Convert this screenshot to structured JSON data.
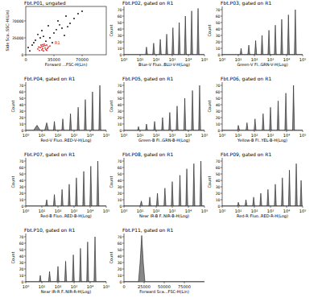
{
  "chart_data": [
    {
      "type": "scatter",
      "title": "Fbt.P01, ungated",
      "x_label": "Forward ...FSC-H(Lin)",
      "y_label": "Side Sca..SSC-H(Lin)",
      "annotation": "R1",
      "xlim": [
        0,
        100000
      ],
      "ylim": [
        0,
        100000
      ],
      "xticks": [
        0,
        35000,
        70000
      ],
      "yticks": [
        0,
        35000,
        70000
      ],
      "series": [
        {
          "color": "#000000",
          "x": [
            12000,
            15000,
            20000,
            28000,
            35000,
            40000,
            45000,
            50000,
            55000,
            60000,
            65000,
            30000,
            25000,
            38000,
            48000,
            8000,
            5000,
            3000,
            70000,
            33000,
            22000,
            42000,
            18000,
            10000,
            52000
          ],
          "values": [
            30000,
            42000,
            50000,
            60000,
            45000,
            70000,
            55000,
            80000,
            65000,
            75000,
            85000,
            35000,
            28000,
            52000,
            40000,
            20000,
            8000,
            15000,
            90000,
            25000,
            38000,
            62000,
            35000,
            25000,
            58000
          ]
        },
        {
          "color": "#e02020",
          "x": [
            15000,
            18000,
            20000,
            22000,
            24000,
            26000,
            28000,
            17000,
            19000,
            21000,
            23000,
            25000,
            27000,
            20000,
            22000,
            24000,
            16000,
            30000,
            26000,
            21000
          ],
          "values": [
            12000,
            15000,
            10000,
            18000,
            14000,
            20000,
            16000,
            9000,
            20000,
            13000,
            22000,
            11000,
            13000,
            17000,
            8000,
            19000,
            16000,
            18000,
            9000,
            21000
          ]
        }
      ]
    },
    {
      "type": "area",
      "title": "Fbt.P02, gated on R1",
      "x_label": "Blue-V Fluo..BLU-V-H(Log)",
      "y_label": "Count",
      "log": "x",
      "color": "#888888",
      "xlim": [
        1,
        100000
      ],
      "ylim": [
        0,
        75
      ],
      "xticks": [
        {
          "value": 1,
          "label": "10⁰"
        },
        {
          "value": 10,
          "label": "10¹"
        },
        {
          "value": 100,
          "label": "10²"
        },
        {
          "value": 1000,
          "label": "10³"
        },
        {
          "value": 10000,
          "label": "10⁴"
        },
        {
          "value": 100000,
          "label": "10⁵"
        }
      ],
      "yticks": [
        0,
        10,
        20,
        30,
        40,
        50,
        60,
        70
      ],
      "x": [
        1,
        22,
        25,
        29,
        61,
        70,
        81,
        157,
        180,
        207,
        392,
        450,
        518,
        957,
        1100,
        1265,
        2349,
        2700,
        3105,
        5655,
        6500,
        7475,
        13920,
        16000,
        18400,
        34800,
        40000,
        46000,
        100000
      ],
      "values": [
        0,
        0,
        12,
        0,
        0,
        18,
        0,
        0,
        24,
        0,
        0,
        32,
        0,
        0,
        42,
        0,
        0,
        50,
        0,
        0,
        60,
        0,
        0,
        68,
        0,
        0,
        72,
        0,
        0
      ]
    },
    {
      "type": "area",
      "title": "Fbt.P03, gated on R1",
      "x_label": "Green-V Fl..GRN-V-H(Log)",
      "y_label": "Count",
      "log": "x",
      "color": "#888888",
      "xlim": [
        1,
        100000
      ],
      "ylim": [
        0,
        75
      ],
      "xticks": [
        {
          "value": 1,
          "label": "10⁰"
        },
        {
          "value": 10,
          "label": "10¹"
        },
        {
          "value": 100,
          "label": "10²"
        },
        {
          "value": 1000,
          "label": "10³"
        },
        {
          "value": 10000,
          "label": "10⁴"
        },
        {
          "value": 100000,
          "label": "10⁵"
        }
      ],
      "yticks": [
        0,
        10,
        20,
        30,
        40,
        50,
        60,
        70
      ],
      "x": [
        1,
        13,
        15,
        17,
        39,
        45,
        52,
        104,
        120,
        138,
        261,
        300,
        345,
        696,
        800,
        920,
        1740,
        2000,
        2300,
        4350,
        5000,
        5750,
        11310,
        13000,
        14950,
        30450,
        35000,
        40250,
        100000
      ],
      "values": [
        0,
        0,
        10,
        0,
        0,
        15,
        0,
        0,
        22,
        0,
        0,
        30,
        0,
        0,
        38,
        0,
        0,
        46,
        0,
        0,
        55,
        0,
        0,
        62,
        0,
        0,
        70,
        0,
        0
      ]
    },
    {
      "type": "area",
      "title": "Fbt.P04, gated on R1",
      "x_label": "Red-V Fluo..RED-V-H(Log)",
      "y_label": "Count",
      "log": "x",
      "color": "#888888",
      "xlim": [
        1,
        100000
      ],
      "ylim": [
        0,
        75
      ],
      "xticks": [
        {
          "value": 1,
          "label": "10⁰"
        },
        {
          "value": 10,
          "label": "10¹"
        },
        {
          "value": 100,
          "label": "10²"
        },
        {
          "value": 1000,
          "label": "10³"
        },
        {
          "value": 10000,
          "label": "10⁴"
        },
        {
          "value": 100000,
          "label": "10⁵"
        }
      ],
      "yticks": [
        0,
        10,
        20,
        30,
        40,
        50,
        60,
        70
      ],
      "x": [
        1,
        3,
        5,
        8,
        15,
        20,
        26,
        52,
        60,
        69,
        174,
        200,
        230,
        522,
        600,
        690,
        1566,
        1800,
        2070,
        4350,
        5000,
        5750,
        12180,
        14000,
        16100,
        34800,
        40000,
        46000,
        100000
      ],
      "values": [
        0,
        0,
        8,
        0,
        0,
        12,
        0,
        0,
        14,
        0,
        0,
        18,
        0,
        0,
        26,
        0,
        0,
        36,
        0,
        0,
        48,
        0,
        0,
        60,
        0,
        0,
        70,
        0,
        0
      ]
    },
    {
      "type": "area",
      "title": "Fbt.P05, gated on R1",
      "x_label": "Green-B Fl..GRN-B-H(Log)",
      "y_label": "Count",
      "log": "x",
      "color": "#888888",
      "xlim": [
        1,
        100000
      ],
      "ylim": [
        0,
        75
      ],
      "xticks": [
        {
          "value": 1,
          "label": "10⁰"
        },
        {
          "value": 10,
          "label": "10¹"
        },
        {
          "value": 100,
          "label": "10²"
        },
        {
          "value": 1000,
          "label": "10³"
        },
        {
          "value": 10000,
          "label": "10⁴"
        },
        {
          "value": 100000,
          "label": "10⁵"
        }
      ],
      "yticks": [
        0,
        10,
        20,
        30,
        40,
        50,
        60,
        70
      ],
      "x": [
        1,
        7,
        8,
        9,
        22,
        25,
        29,
        70,
        80,
        92,
        218,
        250,
        288,
        609,
        700,
        805,
        1740,
        2000,
        2300,
        5220,
        6000,
        6900,
        15660,
        18000,
        20700,
        43500,
        50000,
        57500,
        100000
      ],
      "values": [
        0,
        0,
        6,
        0,
        0,
        10,
        0,
        0,
        14,
        0,
        0,
        20,
        0,
        0,
        28,
        0,
        0,
        38,
        0,
        0,
        50,
        0,
        0,
        62,
        0,
        0,
        70,
        0,
        0
      ]
    },
    {
      "type": "area",
      "title": "Fbt.P06, gated on R1",
      "x_label": "Yellow-B Fl..YEL-B-H(Log)",
      "y_label": "Count",
      "log": "x",
      "color": "#888888",
      "xlim": [
        1,
        100000
      ],
      "ylim": [
        0,
        75
      ],
      "xticks": [
        {
          "value": 1,
          "label": "10⁰"
        },
        {
          "value": 10,
          "label": "10¹"
        },
        {
          "value": 100,
          "label": "10²"
        },
        {
          "value": 1000,
          "label": "10³"
        },
        {
          "value": 10000,
          "label": "10⁴"
        },
        {
          "value": 100000,
          "label": "10⁵"
        }
      ],
      "yticks": [
        0,
        10,
        20,
        30,
        40,
        50,
        60,
        70
      ],
      "x": [
        1,
        9,
        10,
        12,
        30,
        35,
        40,
        96,
        110,
        127,
        305,
        350,
        403,
        870,
        1000,
        1150,
        2610,
        3000,
        3450,
        7830,
        9000,
        10350,
        23490,
        27000,
        31050,
        100000
      ],
      "values": [
        0,
        0,
        8,
        0,
        0,
        12,
        0,
        0,
        18,
        0,
        0,
        26,
        0,
        0,
        36,
        0,
        0,
        46,
        0,
        0,
        58,
        0,
        0,
        70,
        0,
        0
      ]
    },
    {
      "type": "area",
      "title": "Fbt.P07, gated on R1",
      "x_label": "Red-B Fluo..RED-B-H(Log)",
      "y_label": "Count",
      "log": "x",
      "color": "#888888",
      "xlim": [
        1,
        100000
      ],
      "ylim": [
        0,
        75
      ],
      "xticks": [
        {
          "value": 1,
          "label": "10⁰"
        },
        {
          "value": 10,
          "label": "10¹"
        },
        {
          "value": 100,
          "label": "10²"
        },
        {
          "value": 1000,
          "label": "10³"
        },
        {
          "value": 10000,
          "label": "10⁴"
        },
        {
          "value": 100000,
          "label": "10⁵"
        }
      ],
      "yticks": [
        0,
        10,
        20,
        30,
        40,
        50,
        60,
        70
      ],
      "x": [
        1,
        17,
        20,
        23,
        52,
        60,
        69,
        157,
        180,
        207,
        435,
        500,
        575,
        1218,
        1400,
        1610,
        3480,
        4000,
        4600,
        9570,
        11000,
        12650,
        26100,
        30000,
        34500,
        100000
      ],
      "values": [
        0,
        0,
        10,
        0,
        0,
        18,
        0,
        0,
        26,
        0,
        0,
        34,
        0,
        0,
        44,
        0,
        0,
        54,
        0,
        0,
        62,
        0,
        0,
        70,
        0,
        0
      ]
    },
    {
      "type": "area",
      "title": "Fbt.P08, gated on R1",
      "x_label": "Near IR-B F..NIR-B-H(Log)",
      "y_label": "Count",
      "log": "x",
      "color": "#888888",
      "xlim": [
        1,
        100000
      ],
      "ylim": [
        0,
        75
      ],
      "xticks": [
        {
          "value": 1,
          "label": "10⁰"
        },
        {
          "value": 10,
          "label": "10¹"
        },
        {
          "value": 100,
          "label": "10²"
        },
        {
          "value": 1000,
          "label": "10³"
        },
        {
          "value": 10000,
          "label": "10⁴"
        },
        {
          "value": 100000,
          "label": "10⁵"
        }
      ],
      "yticks": [
        0,
        10,
        20,
        30,
        40,
        50,
        60,
        70
      ],
      "x": [
        1,
        10,
        12,
        14,
        35,
        40,
        46,
        104,
        120,
        138,
        305,
        350,
        403,
        870,
        1000,
        1150,
        2610,
        3000,
        3450,
        6960,
        8000,
        9200,
        19140,
        22000,
        25300,
        52200,
        60000,
        69000,
        100000
      ],
      "values": [
        0,
        0,
        8,
        0,
        0,
        14,
        0,
        0,
        20,
        0,
        0,
        28,
        0,
        0,
        38,
        0,
        0,
        48,
        0,
        0,
        58,
        0,
        0,
        66,
        0,
        0,
        70,
        0,
        0
      ]
    },
    {
      "type": "area",
      "title": "Fbt.P09, gated on R1",
      "x_label": "Red-R Fluo..RED-R-H(Log)",
      "y_label": "Count",
      "log": "x",
      "color": "#888888",
      "xlim": [
        1,
        100000
      ],
      "ylim": [
        0,
        75
      ],
      "xticks": [
        {
          "value": 1,
          "label": "10⁰"
        },
        {
          "value": 10,
          "label": "10¹"
        },
        {
          "value": 100,
          "label": "10²"
        },
        {
          "value": 1000,
          "label": "10³"
        },
        {
          "value": 10000,
          "label": "10⁴"
        },
        {
          "value": 100000,
          "label": "10⁵"
        }
      ],
      "yticks": [
        0,
        10,
        20,
        30,
        40,
        50,
        60,
        70
      ],
      "x": [
        1,
        9,
        10,
        12,
        26,
        30,
        35,
        78,
        90,
        104,
        218,
        250,
        288,
        609,
        700,
        805,
        1740,
        2000,
        2300,
        4785,
        5500,
        6325,
        13050,
        15000,
        17250,
        34800,
        40000,
        46000,
        69600,
        80000,
        92000,
        100000
      ],
      "values": [
        0,
        0,
        6,
        0,
        0,
        10,
        0,
        0,
        14,
        0,
        0,
        20,
        0,
        0,
        26,
        0,
        0,
        34,
        0,
        0,
        44,
        0,
        0,
        56,
        0,
        0,
        66,
        0,
        0,
        40,
        0,
        0
      ]
    },
    {
      "type": "area",
      "title": "Fbt.P10, gated on R1",
      "x_label": "Near IR-R F..NIR-R-H(Log)",
      "y_label": "Count",
      "log": "x",
      "color": "#888888",
      "xlim": [
        1,
        100000
      ],
      "ylim": [
        0,
        75
      ],
      "xticks": [
        {
          "value": 1,
          "label": "10⁰"
        },
        {
          "value": 10,
          "label": "10¹"
        },
        {
          "value": 100,
          "label": "10²"
        },
        {
          "value": 1000,
          "label": "10³"
        },
        {
          "value": 10000,
          "label": "10⁴"
        },
        {
          "value": 100000,
          "label": "10⁵"
        }
      ],
      "yticks": [
        0,
        10,
        20,
        30,
        40,
        50,
        60,
        70
      ],
      "x": [
        1,
        7,
        8,
        9,
        26,
        30,
        35,
        87,
        100,
        115,
        261,
        300,
        345,
        783,
        900,
        1035,
        2175,
        2500,
        2875,
        6090,
        7000,
        8050,
        17400,
        20000,
        23000,
        100000
      ],
      "values": [
        0,
        0,
        10,
        0,
        0,
        16,
        0,
        0,
        24,
        0,
        0,
        32,
        0,
        0,
        42,
        0,
        0,
        52,
        0,
        0,
        62,
        0,
        0,
        70,
        0,
        0
      ]
    },
    {
      "type": "area",
      "title": "Fbt.P11, gated on R1",
      "x_label": "Forward Sca...FSC-H(Lin)",
      "y_label": "Count",
      "color": "#888888",
      "xlim": [
        0,
        100000
      ],
      "ylim": [
        0,
        75
      ],
      "xticks": [
        0,
        25000,
        50000,
        75000
      ],
      "yticks": [
        0,
        10,
        20,
        30,
        40,
        50,
        60,
        70
      ],
      "x": [
        0,
        18000,
        20000,
        22000,
        24000,
        26000,
        100000
      ],
      "values": [
        0,
        0,
        30,
        72,
        30,
        0,
        0
      ]
    }
  ]
}
